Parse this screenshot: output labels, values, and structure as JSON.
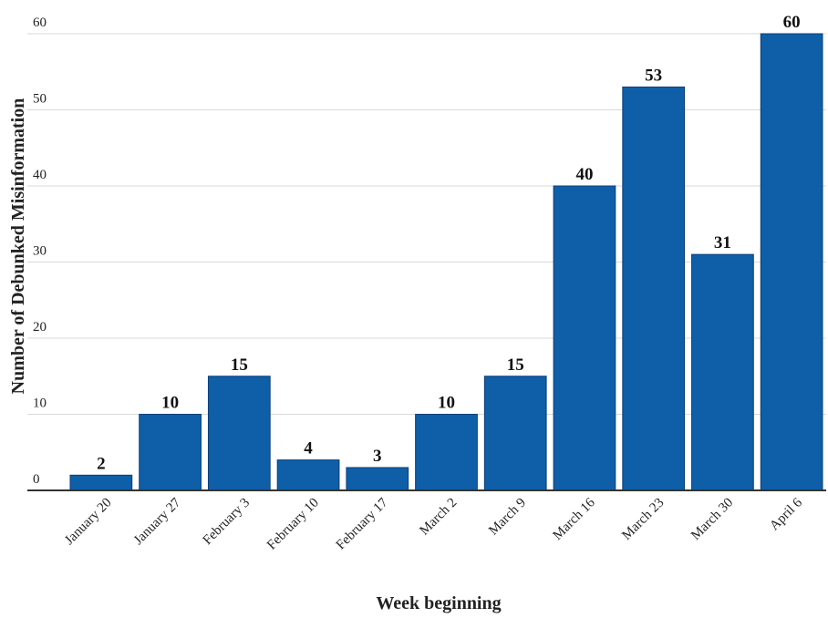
{
  "chart_data": {
    "type": "bar",
    "categories": [
      "January 20",
      "January 27",
      "February 3",
      "February 10",
      "February 17",
      "March 2",
      "March 9",
      "March 16",
      "March 23",
      "March 30",
      "April 6"
    ],
    "values": [
      2,
      10,
      15,
      4,
      3,
      10,
      15,
      40,
      53,
      31,
      60
    ],
    "title": "",
    "xlabel": "Week beginning",
    "ylabel": "Number of Debunked Misinformation",
    "ylim": [
      0,
      60
    ],
    "yticks": [
      0,
      10,
      20,
      30,
      40,
      50,
      60
    ],
    "grid": true,
    "data_labels": true,
    "bar_color": "#0E5FA8",
    "bar_edge_color": "#0A3F78"
  }
}
